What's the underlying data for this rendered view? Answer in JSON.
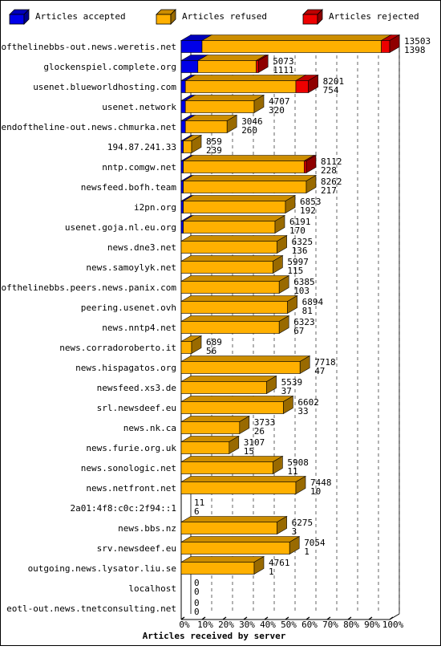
{
  "colors": {
    "accepted": "#0000e8",
    "refused": "#ffb000",
    "rejected": "#ee0000",
    "frame": "#000000",
    "background": "#ffffff"
  },
  "chart_data": {
    "type": "bar",
    "orientation": "horizontal",
    "stacked": true,
    "title": "",
    "xlabel": "Articles received by server",
    "ylabel": "",
    "xlim": [
      0,
      100
    ],
    "x_tick_labels": [
      "0%",
      "10%",
      "20%",
      "30%",
      "40%",
      "50%",
      "60%",
      "70%",
      "80%",
      "90%",
      "100%"
    ],
    "grid": true,
    "legend": [
      {
        "name": "Articles accepted",
        "color_key": "accepted"
      },
      {
        "name": "Articles refused",
        "color_key": "refused"
      },
      {
        "name": "Articles rejected",
        "color_key": "rejected"
      }
    ],
    "legend_position": "top",
    "rows": [
      {
        "server": "endofthelinebbs-out.news.weretis.net",
        "total": "13503",
        "refused_count": "1398",
        "accepted_pct": 10,
        "refused_pct": 86,
        "rejected_pct": 4
      },
      {
        "server": "glockenspiel.complete.org",
        "total": "5073",
        "refused_count": "1111",
        "accepted_pct": 8,
        "refused_pct": 28,
        "rejected_pct": 1
      },
      {
        "server": "usenet.blueworldhosting.com",
        "total": "8201",
        "refused_count": "754",
        "accepted_pct": 2,
        "refused_pct": 53,
        "rejected_pct": 6
      },
      {
        "server": "usenet.network",
        "total": "4707",
        "refused_count": "320",
        "accepted_pct": 2,
        "refused_pct": 33,
        "rejected_pct": 0
      },
      {
        "server": "endoftheline-out.news.chmurka.net",
        "total": "3046",
        "refused_count": "260",
        "accepted_pct": 2,
        "refused_pct": 20,
        "rejected_pct": 0
      },
      {
        "server": "194.87.241.33",
        "total": "859",
        "refused_count": "239",
        "accepted_pct": 1,
        "refused_pct": 4,
        "rejected_pct": 0
      },
      {
        "server": "nntp.comgw.net",
        "total": "8112",
        "refused_count": "228",
        "accepted_pct": 1,
        "refused_pct": 58,
        "rejected_pct": 1
      },
      {
        "server": "newsfeed.bofh.team",
        "total": "8262",
        "refused_count": "217",
        "accepted_pct": 1,
        "refused_pct": 59,
        "rejected_pct": 0
      },
      {
        "server": "i2pn.org",
        "total": "6853",
        "refused_count": "192",
        "accepted_pct": 1,
        "refused_pct": 49,
        "rejected_pct": 0
      },
      {
        "server": "usenet.goja.nl.eu.org",
        "total": "6191",
        "refused_count": "170",
        "accepted_pct": 1,
        "refused_pct": 44,
        "rejected_pct": 0
      },
      {
        "server": "news.dne3.net",
        "total": "6325",
        "refused_count": "136",
        "accepted_pct": 0,
        "refused_pct": 46,
        "rejected_pct": 0
      },
      {
        "server": "news.samoylyk.net",
        "total": "5997",
        "refused_count": "115",
        "accepted_pct": 0,
        "refused_pct": 44,
        "rejected_pct": 0
      },
      {
        "server": "endofthelinebbs.peers.news.panix.com",
        "total": "6385",
        "refused_count": "103",
        "accepted_pct": 0,
        "refused_pct": 47,
        "rejected_pct": 0
      },
      {
        "server": "peering.usenet.ovh",
        "total": "6894",
        "refused_count": "81",
        "accepted_pct": 0,
        "refused_pct": 51,
        "rejected_pct": 0
      },
      {
        "server": "news.nntp4.net",
        "total": "6323",
        "refused_count": "67",
        "accepted_pct": 0,
        "refused_pct": 47,
        "rejected_pct": 0
      },
      {
        "server": "news.corradoroberto.it",
        "total": "689",
        "refused_count": "56",
        "accepted_pct": 0,
        "refused_pct": 5,
        "rejected_pct": 0
      },
      {
        "server": "news.hispagatos.org",
        "total": "7718",
        "refused_count": "47",
        "accepted_pct": 0,
        "refused_pct": 57,
        "rejected_pct": 0
      },
      {
        "server": "newsfeed.xs3.de",
        "total": "5539",
        "refused_count": "37",
        "accepted_pct": 0,
        "refused_pct": 41,
        "rejected_pct": 0
      },
      {
        "server": "srl.newsdeef.eu",
        "total": "6602",
        "refused_count": "33",
        "accepted_pct": 0,
        "refused_pct": 49,
        "rejected_pct": 0
      },
      {
        "server": "news.nk.ca",
        "total": "3733",
        "refused_count": "26",
        "accepted_pct": 0,
        "refused_pct": 28,
        "rejected_pct": 0
      },
      {
        "server": "news.furie.org.uk",
        "total": "3107",
        "refused_count": "15",
        "accepted_pct": 0,
        "refused_pct": 23,
        "rejected_pct": 0
      },
      {
        "server": "news.sonologic.net",
        "total": "5908",
        "refused_count": "11",
        "accepted_pct": 0,
        "refused_pct": 44,
        "rejected_pct": 0
      },
      {
        "server": "news.netfront.net",
        "total": "7448",
        "refused_count": "10",
        "accepted_pct": 0,
        "refused_pct": 55,
        "rejected_pct": 0
      },
      {
        "server": "2a01:4f8:c0c:2f94::1",
        "total": "11",
        "refused_count": "6",
        "accepted_pct": 0,
        "refused_pct": 0,
        "rejected_pct": 0
      },
      {
        "server": "news.bbs.nz",
        "total": "6275",
        "refused_count": "3",
        "accepted_pct": 0,
        "refused_pct": 46,
        "rejected_pct": 0
      },
      {
        "server": "srv.newsdeef.eu",
        "total": "7054",
        "refused_count": "1",
        "accepted_pct": 0,
        "refused_pct": 52,
        "rejected_pct": 0
      },
      {
        "server": "outgoing.news.lysator.liu.se",
        "total": "4761",
        "refused_count": "1",
        "accepted_pct": 0,
        "refused_pct": 35,
        "rejected_pct": 0
      },
      {
        "server": "localhost",
        "total": "0",
        "refused_count": "0",
        "accepted_pct": 0,
        "refused_pct": 0,
        "rejected_pct": 0
      },
      {
        "server": "eotl-out.news.tnetconsulting.net",
        "total": "0",
        "refused_count": "0",
        "accepted_pct": 0,
        "refused_pct": 0,
        "rejected_pct": 0
      }
    ]
  }
}
